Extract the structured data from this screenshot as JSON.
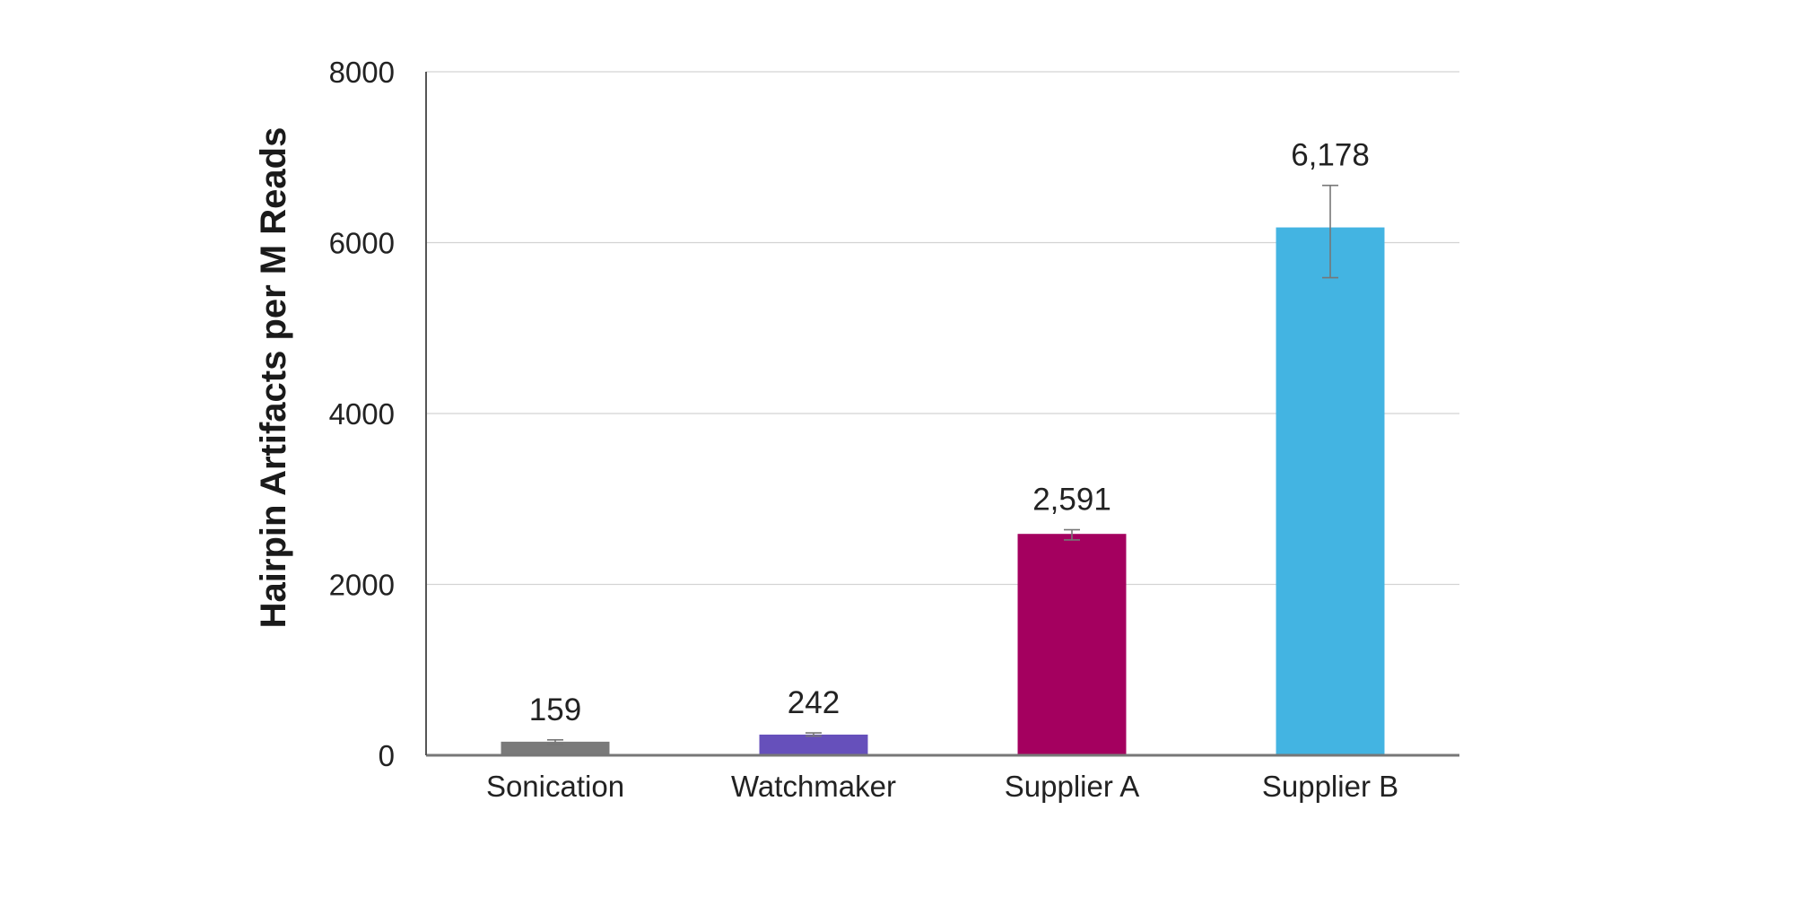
{
  "chart_data": {
    "type": "bar",
    "title": "",
    "xlabel": "",
    "ylabel": "Hairpin Artifacts per M Reads",
    "categories": [
      "Sonication",
      "Watchmaker",
      "Supplier A",
      "Supplier B"
    ],
    "values": [
      159,
      242,
      2591,
      6178
    ],
    "data_labels": [
      "159",
      "242",
      "2,591",
      "6,178"
    ],
    "error": [
      {
        "low": 130,
        "high": 180
      },
      {
        "low": 225,
        "high": 262
      },
      {
        "low": 2520,
        "high": 2640
      },
      {
        "low": 5590,
        "high": 6670
      }
    ],
    "colors": [
      "#7a7a7a",
      "#6650bb",
      "#a4005f",
      "#43b4e2"
    ],
    "ylim": [
      0,
      8000
    ],
    "yticks": [
      0,
      2000,
      4000,
      6000,
      8000
    ],
    "ytick_labels": [
      "0",
      "2000",
      "4000",
      "6000",
      "8000"
    ],
    "grid": true,
    "legend": "none"
  }
}
